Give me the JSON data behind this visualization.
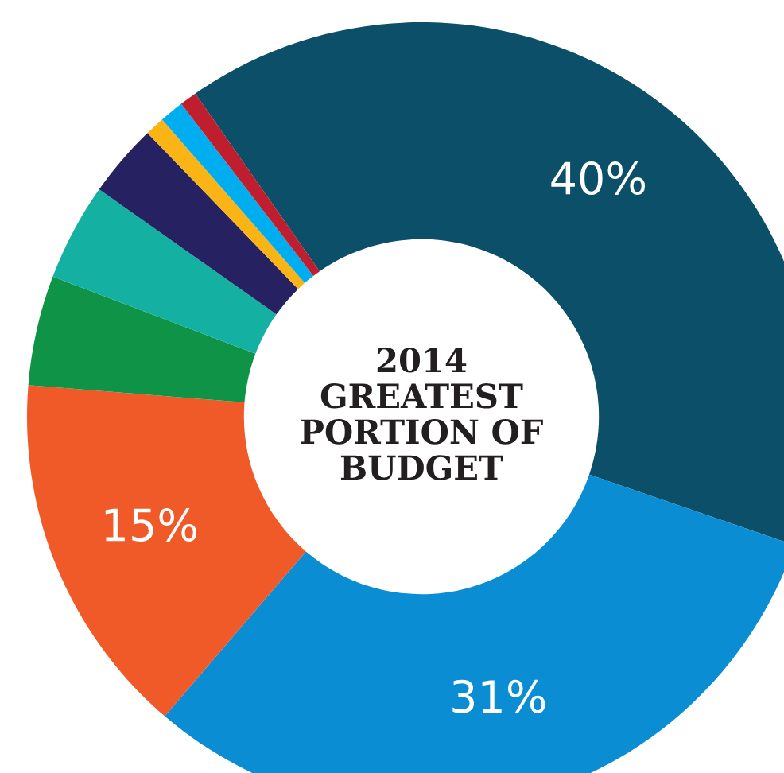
{
  "chart_data": {
    "type": "donut",
    "title": "2014\nGREATEST\nPORTION OF\nBUDGET",
    "categories": [
      null,
      null,
      null,
      null,
      null,
      null,
      null,
      null,
      null
    ],
    "values": [
      40,
      31,
      15,
      4.5,
      4,
      3,
      0.8,
      1,
      0.7
    ],
    "colors": [
      "#0c4f69",
      "#0a8dd3",
      "#f05a28",
      "#0f9346",
      "#14b1a2",
      "#262262",
      "#fbb416",
      "#00aeef",
      "#be1e2d"
    ],
    "value_labels": [
      "40%",
      "31%",
      "15%",
      null,
      null,
      null,
      null,
      null,
      null
    ]
  }
}
